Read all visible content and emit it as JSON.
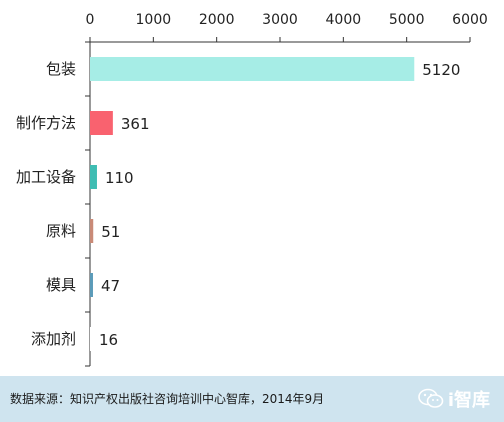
{
  "chart_data": {
    "type": "bar",
    "orientation": "horizontal",
    "categories": [
      "包装",
      "制作方法",
      "加工设备",
      "原料",
      "模具",
      "添加剂"
    ],
    "values": [
      5120,
      361,
      110,
      51,
      47,
      16
    ],
    "colors": [
      "#a6ede6",
      "#f9626f",
      "#3fbdb3",
      "#c98a77",
      "#5b9bb9",
      "#ffffff"
    ],
    "xlim": [
      0,
      6000
    ],
    "xticks": [
      0,
      1000,
      2000,
      3000,
      4000,
      5000,
      6000
    ],
    "x_axis_position": "top",
    "grid": false,
    "title": "",
    "xlabel": "",
    "ylabel": ""
  },
  "footer": {
    "source": "数据来源：知识产权出版社咨询培训中心智库，2014年9月",
    "brand": "i智库",
    "brand_icon": "wechat-icon"
  }
}
